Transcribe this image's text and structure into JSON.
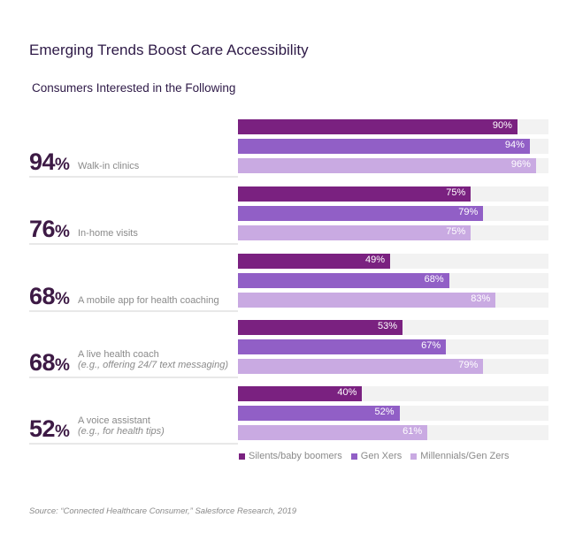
{
  "title": "Emerging Trends Boost Care Accessibility",
  "subtitle": "Consumers Interested in the Following",
  "source": "Source: “Connected Healthcare Consumer,” Salesforce Research, 2019",
  "chart_data": {
    "type": "bar",
    "orientation": "horizontal",
    "xlim": [
      0,
      100
    ],
    "categories": [
      {
        "overall": "94",
        "label": "Walk-in clinics",
        "sublabel": ""
      },
      {
        "overall": "76",
        "label": "In-home visits",
        "sublabel": ""
      },
      {
        "overall": "68",
        "label": "A mobile app for health coaching",
        "sublabel": ""
      },
      {
        "overall": "68",
        "label": "A live health coach",
        "sublabel": "(e.g., offering 24/7 text messaging)"
      },
      {
        "overall": "52",
        "label": "A voice assistant",
        "sublabel": "(e.g., for health tips)"
      }
    ],
    "series": [
      {
        "name": "Silents/baby boomers",
        "color": "#7a2180",
        "values": [
          90,
          75,
          49,
          53,
          40
        ]
      },
      {
        "name": "Gen Xers",
        "color": "#915fc6",
        "values": [
          94,
          79,
          68,
          67,
          52
        ]
      },
      {
        "name": "Millennials/Gen Zers",
        "color": "#c9aae2",
        "values": [
          96,
          75,
          83,
          79,
          61
        ]
      }
    ],
    "legend_position": "bottom",
    "percent_sign": "%"
  }
}
